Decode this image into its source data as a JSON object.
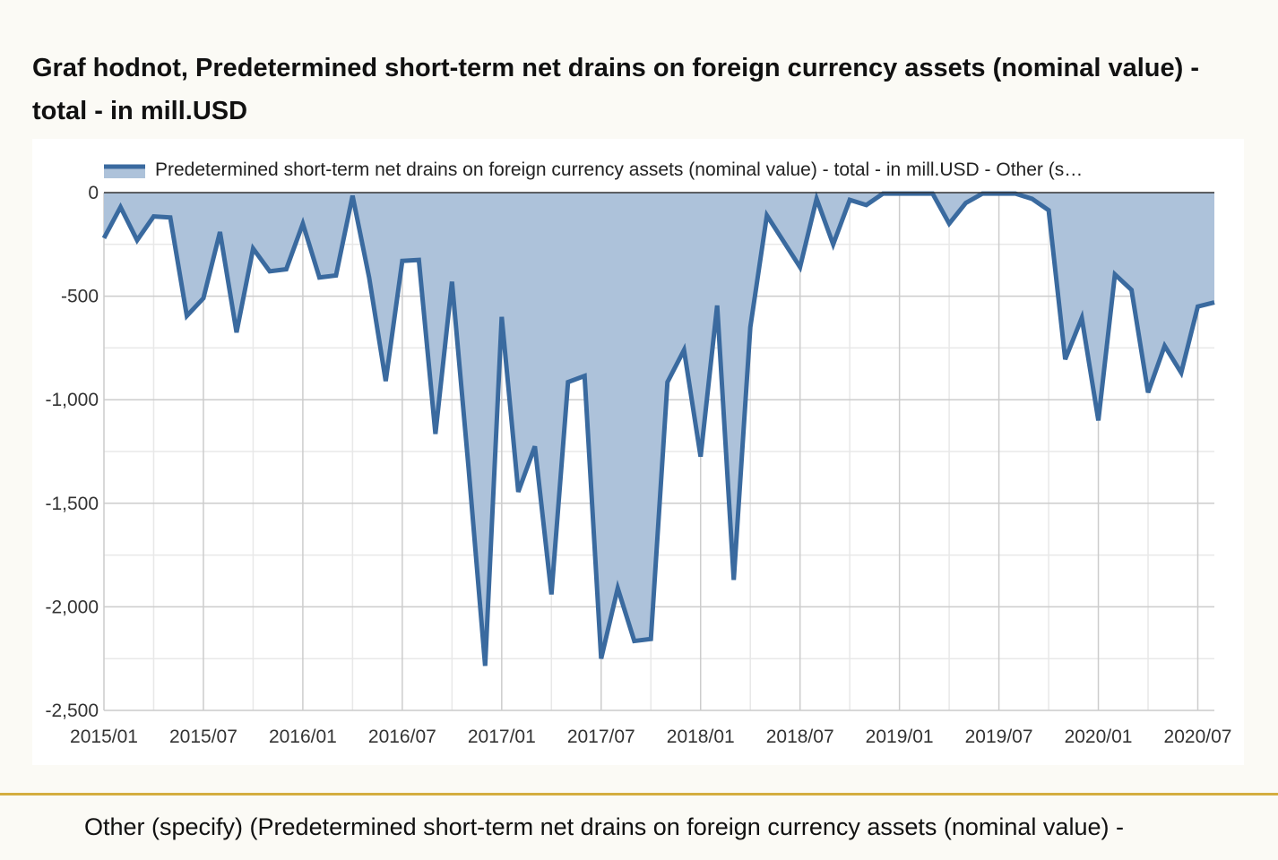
{
  "title": "Graf hodnot, Predetermined short-term net drains on foreign currency assets (nominal value) - total - in mill.USD",
  "footer": {
    "text": "Other (specify) (Predetermined short-term net drains on foreign currency assets (nominal value) -"
  },
  "colors": {
    "line": "#3a6a9f",
    "area": "#adc2da",
    "grid_major": "#cccccc",
    "grid_minor": "#e8e8e8",
    "zero_line": "#333333",
    "divider": "#d4ad3f"
  },
  "chart_data": {
    "type": "area",
    "title": "Graf hodnot, Predetermined short-term net drains on foreign currency assets (nominal value) - total - in mill.USD",
    "legend_position": "top",
    "grid": true,
    "ylim": [
      -2500,
      0
    ],
    "yticks": [
      0,
      -500,
      -1000,
      -1500,
      -2000,
      -2500
    ],
    "ytick_labels": [
      "0",
      "-500",
      "-1,000",
      "-1,500",
      "-2,000",
      "-2,500"
    ],
    "xtick_labels": [
      "2015/01",
      "2015/07",
      "2016/01",
      "2016/07",
      "2017/01",
      "2017/07",
      "2018/01",
      "2018/07",
      "2019/01",
      "2019/07",
      "2020/01",
      "2020/07"
    ],
    "series": [
      {
        "name": "Predetermined short-term net drains on foreign currency assets (nominal value) - total - in mill.USD - Other (s…",
        "x": [
          "2015/01",
          "2015/02",
          "2015/03",
          "2015/04",
          "2015/05",
          "2015/06",
          "2015/07",
          "2015/08",
          "2015/09",
          "2015/10",
          "2015/11",
          "2015/12",
          "2016/01",
          "2016/02",
          "2016/03",
          "2016/04",
          "2016/05",
          "2016/06",
          "2016/07",
          "2016/08",
          "2016/09",
          "2016/10",
          "2016/11",
          "2016/12",
          "2017/01",
          "2017/02",
          "2017/03",
          "2017/04",
          "2017/05",
          "2017/06",
          "2017/07",
          "2017/08",
          "2017/09",
          "2017/10",
          "2017/11",
          "2017/12",
          "2018/01",
          "2018/02",
          "2018/03",
          "2018/04",
          "2018/05",
          "2018/06",
          "2018/07",
          "2018/08",
          "2018/09",
          "2018/10",
          "2018/11",
          "2018/12",
          "2019/01",
          "2019/02",
          "2019/03",
          "2019/04",
          "2019/05",
          "2019/06",
          "2019/07",
          "2019/08",
          "2019/09",
          "2019/10",
          "2019/11",
          "2019/12",
          "2020/01",
          "2020/02",
          "2020/03",
          "2020/04",
          "2020/05",
          "2020/06",
          "2020/07",
          "2020/08"
        ],
        "values": [
          -220,
          -70,
          -230,
          -115,
          -120,
          -595,
          -510,
          -190,
          -675,
          -270,
          -380,
          -370,
          -150,
          -410,
          -400,
          -15,
          -410,
          -910,
          -330,
          -325,
          -1165,
          -430,
          -1330,
          -2285,
          -600,
          -1445,
          -1225,
          -1940,
          -915,
          -885,
          -2250,
          -1910,
          -2165,
          -2155,
          -915,
          -760,
          -1275,
          -545,
          -1870,
          -650,
          -110,
          -235,
          -360,
          -30,
          -250,
          -35,
          -60,
          -5,
          -5,
          -5,
          -5,
          -150,
          -50,
          -5,
          -5,
          -5,
          -30,
          -85,
          -805,
          -605,
          -1100,
          -395,
          -470,
          -965,
          -740,
          -870,
          -550,
          -530
        ]
      }
    ]
  }
}
